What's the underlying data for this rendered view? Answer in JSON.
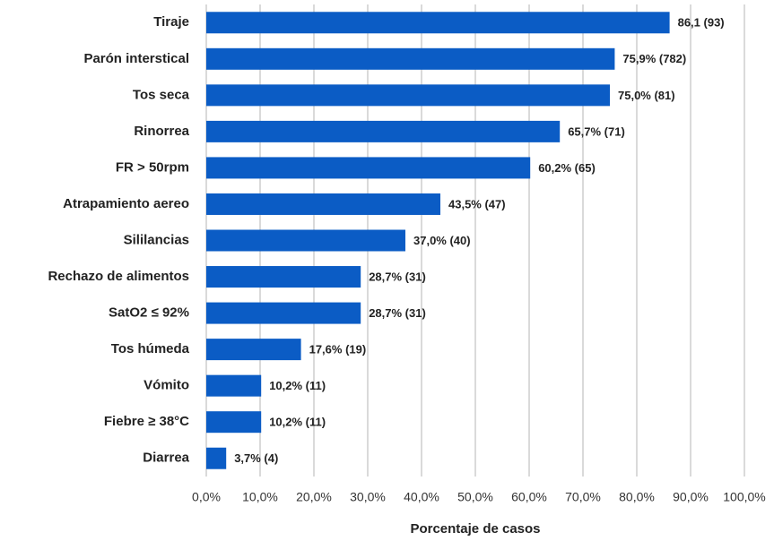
{
  "chart_data": {
    "type": "hbar",
    "categories": [
      "Tiraje",
      "Parón interstical",
      "Tos seca",
      "Rinorrea",
      "FR > 50rpm",
      "Atrapamiento aereo",
      "Sililancias",
      "Rechazo de alimentos",
      "SatO2 ≤ 92%",
      "Tos húmeda",
      "Vómito",
      "Fiebre ≥ 38°C",
      "Diarrea"
    ],
    "values": [
      86.1,
      75.9,
      75.0,
      65.7,
      60.2,
      43.5,
      37.0,
      28.7,
      28.7,
      17.6,
      10.2,
      10.2,
      3.7
    ],
    "value_labels": [
      "86,1 (93)",
      "75,9% (782)",
      "75,0% (81)",
      "65,7% (71)",
      "60,2% (65)",
      "43,5% (47)",
      "37,0% (40)",
      "28,7% (31)",
      "28,7% (31)",
      "17,6% (19)",
      "10,2% (11)",
      "10,2% (11)",
      "3,7% (4)"
    ],
    "color": "#0b5cc5",
    "xlabel": "Porcentaje de casos",
    "xlim": [
      0,
      100
    ],
    "xticks": [
      {
        "value": 0,
        "label": "0,0%"
      },
      {
        "value": 10,
        "label": "10,0%"
      },
      {
        "value": 20,
        "label": "20,0%"
      },
      {
        "value": 30,
        "label": "30,0%"
      },
      {
        "value": 40,
        "label": "40,0%"
      },
      {
        "value": 50,
        "label": "50,0%"
      },
      {
        "value": 60,
        "label": "60,0%"
      },
      {
        "value": 70,
        "label": "70,0%"
      },
      {
        "value": 80,
        "label": "80,0%"
      },
      {
        "value": 90,
        "label": "90,0%"
      },
      {
        "value": 100,
        "label": "100,0%"
      }
    ],
    "grid": true
  }
}
